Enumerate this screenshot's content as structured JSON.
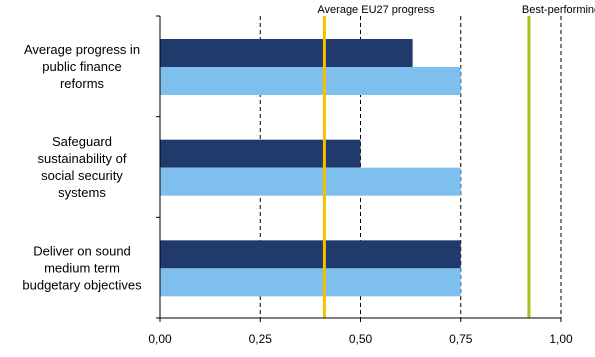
{
  "chart_data": {
    "type": "bar",
    "orientation": "horizontal",
    "categories": [
      [
        "Average progress in",
        "public finance",
        "reforms"
      ],
      [
        "Safeguard",
        "sustainability of",
        "social security",
        "systems"
      ],
      [
        "Deliver on sound",
        "medium term",
        "budgetary objectives"
      ]
    ],
    "series": [
      {
        "values": [
          0.63,
          0.5,
          0.75
        ],
        "color": "#1f3a6b"
      },
      {
        "values": [
          0.75,
          0.75,
          0.75
        ],
        "color": "#7fbfee"
      }
    ],
    "reference_lines": [
      {
        "label": "Average EU27 progress",
        "value": 0.41,
        "color": "#f5c000"
      },
      {
        "label": "Best-performing country",
        "value": 0.92,
        "color": "#a8c21a"
      }
    ],
    "xlim": [
      0,
      1
    ],
    "xticks": [
      "0,00",
      "0,25",
      "0,50",
      "0,75",
      "1,00"
    ],
    "xtick_values": [
      0,
      0.25,
      0.5,
      0.75,
      1.0
    ],
    "grid": "vertical dashed",
    "legend": "none"
  }
}
